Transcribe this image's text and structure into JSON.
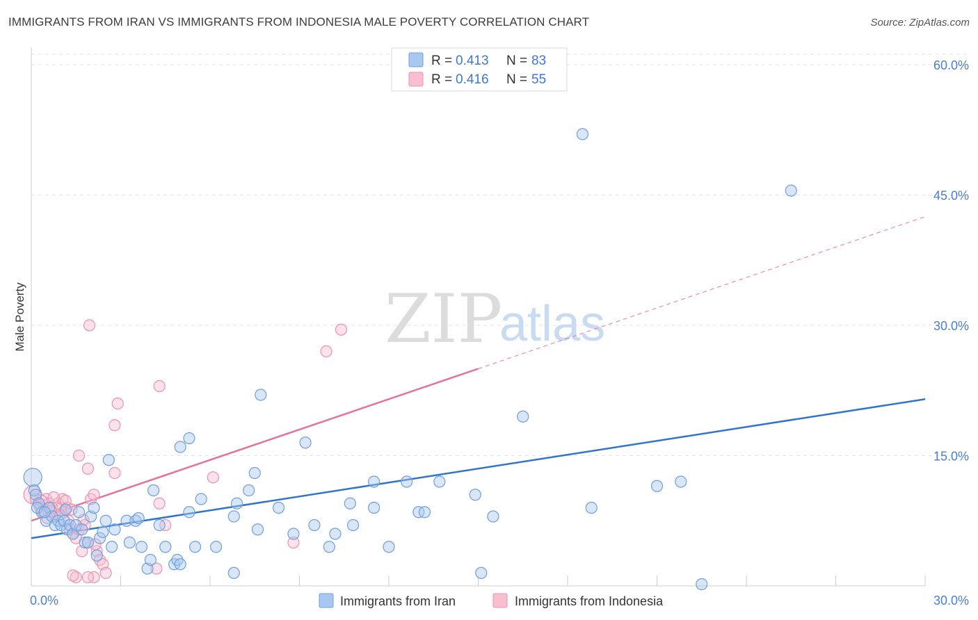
{
  "title": "IMMIGRANTS FROM IRAN VS IMMIGRANTS FROM INDONESIA MALE POVERTY CORRELATION CHART",
  "source": "Source: ZipAtlas.com",
  "watermark": {
    "zip": "ZIP",
    "atlas": "atlas"
  },
  "colors": {
    "iran_fill": "#a9c8f0",
    "iran_stroke": "#6f9fdc",
    "iran_line": "#2f74d0",
    "indonesia_fill": "#f7bfd0",
    "indonesia_stroke": "#ec93ad",
    "indonesia_line": "#e8719a",
    "grid": "#e3e3e3",
    "tick_label": "#4a7fd0"
  },
  "legend": {
    "rows": [
      {
        "r_label": "R = ",
        "r_value": "0.413",
        "n_label": "N = ",
        "n_value": "83"
      },
      {
        "r_label": "R = ",
        "r_value": "0.416",
        "n_label": "N = ",
        "n_value": "55"
      }
    ]
  },
  "chart_data": {
    "type": "scatter",
    "title": "IMMIGRANTS FROM IRAN VS IMMIGRANTS FROM INDONESIA MALE POVERTY CORRELATION CHART",
    "xlabel": "",
    "ylabel": "Male Poverty",
    "xlim": [
      0,
      30
    ],
    "ylim": [
      0,
      62
    ],
    "x_tick_labels": [
      "0.0%",
      "30.0%"
    ],
    "y_ticks": [
      15,
      30,
      45,
      60
    ],
    "y_tick_labels": [
      "15.0%",
      "30.0%",
      "45.0%",
      "60.0%"
    ],
    "grid": true,
    "legend_position": "top-center",
    "series": [
      {
        "name": "Immigrants from Iran",
        "r": 0.413,
        "n": 83,
        "trend": {
          "x0": 0,
          "y0": 5.5,
          "x1": 30,
          "y1": 21.5
        },
        "points": [
          [
            0.05,
            12.5
          ],
          [
            0.1,
            11.0
          ],
          [
            0.15,
            10.5
          ],
          [
            0.25,
            9.5
          ],
          [
            0.35,
            8.5
          ],
          [
            0.5,
            7.5
          ],
          [
            0.6,
            9.0
          ],
          [
            0.7,
            8.0
          ],
          [
            0.8,
            7.0
          ],
          [
            0.9,
            7.5
          ],
          [
            1.0,
            7.0
          ],
          [
            1.1,
            7.5
          ],
          [
            1.2,
            6.5
          ],
          [
            1.3,
            7.0
          ],
          [
            1.4,
            6.0
          ],
          [
            1.5,
            7.0
          ],
          [
            1.6,
            8.5
          ],
          [
            1.7,
            6.5
          ],
          [
            1.8,
            5.0
          ],
          [
            1.9,
            5.0
          ],
          [
            2.0,
            8.0
          ],
          [
            2.1,
            9.0
          ],
          [
            2.2,
            3.5
          ],
          [
            2.3,
            5.5
          ],
          [
            2.5,
            7.5
          ],
          [
            2.6,
            14.5
          ],
          [
            2.7,
            4.5
          ],
          [
            2.8,
            6.5
          ],
          [
            3.2,
            7.5
          ],
          [
            3.3,
            5.0
          ],
          [
            3.5,
            7.5
          ],
          [
            3.7,
            4.5
          ],
          [
            3.9,
            2.0
          ],
          [
            4.0,
            3.0
          ],
          [
            4.1,
            11.0
          ],
          [
            4.3,
            7.0
          ],
          [
            4.5,
            4.5
          ],
          [
            4.8,
            2.5
          ],
          [
            4.9,
            3.0
          ],
          [
            5.0,
            2.5
          ],
          [
            5.3,
            8.5
          ],
          [
            5.5,
            4.5
          ],
          [
            5.7,
            10.0
          ],
          [
            5.0,
            16.0
          ],
          [
            5.3,
            17.0
          ],
          [
            6.2,
            4.5
          ],
          [
            6.8,
            1.5
          ],
          [
            6.8,
            8.0
          ],
          [
            6.9,
            9.5
          ],
          [
            7.3,
            11.0
          ],
          [
            7.5,
            13.0
          ],
          [
            7.6,
            6.5
          ],
          [
            7.7,
            22.0
          ],
          [
            8.3,
            9.0
          ],
          [
            8.8,
            6.0
          ],
          [
            9.2,
            16.5
          ],
          [
            9.5,
            7.0
          ],
          [
            10.0,
            4.5
          ],
          [
            10.2,
            6.0
          ],
          [
            10.7,
            9.5
          ],
          [
            10.8,
            7.0
          ],
          [
            11.5,
            12.0
          ],
          [
            11.5,
            9.0
          ],
          [
            12.0,
            4.5
          ],
          [
            12.6,
            12.0
          ],
          [
            13.0,
            8.5
          ],
          [
            13.2,
            8.5
          ],
          [
            13.7,
            12.0
          ],
          [
            14.9,
            10.5
          ],
          [
            15.1,
            1.5
          ],
          [
            15.5,
            8.0
          ],
          [
            16.5,
            19.5
          ],
          [
            18.5,
            52.0
          ],
          [
            18.8,
            9.0
          ],
          [
            21.0,
            11.5
          ],
          [
            21.8,
            12.0
          ],
          [
            22.5,
            0.2
          ],
          [
            25.5,
            45.5
          ],
          [
            0.2,
            9.0
          ],
          [
            0.45,
            8.5
          ],
          [
            1.15,
            8.8
          ],
          [
            3.6,
            7.8
          ],
          [
            2.4,
            6.2
          ]
        ]
      },
      {
        "name": "Immigrants from Indonesia",
        "r": 0.416,
        "n": 55,
        "trend": {
          "x0": 0,
          "y0": 7.5,
          "x1": 30,
          "y1": 42.5,
          "solid_until_x": 15.0
        },
        "points": [
          [
            0.05,
            10.5
          ],
          [
            0.15,
            10.0
          ],
          [
            0.25,
            9.5
          ],
          [
            0.3,
            9.0
          ],
          [
            0.4,
            8.5
          ],
          [
            0.5,
            10.0
          ],
          [
            0.6,
            9.5
          ],
          [
            0.7,
            9.0
          ],
          [
            0.8,
            8.0
          ],
          [
            0.9,
            9.5
          ],
          [
            1.0,
            9.0
          ],
          [
            1.05,
            10.0
          ],
          [
            1.1,
            8.5
          ],
          [
            1.2,
            9.0
          ],
          [
            1.25,
            7.5
          ],
          [
            1.3,
            6.5
          ],
          [
            1.4,
            6.0
          ],
          [
            1.5,
            5.5
          ],
          [
            1.6,
            6.5
          ],
          [
            1.7,
            4.0
          ],
          [
            1.8,
            7.0
          ],
          [
            1.9,
            5.0
          ],
          [
            2.0,
            10.0
          ],
          [
            2.1,
            10.5
          ],
          [
            2.2,
            4.0
          ],
          [
            2.3,
            3.0
          ],
          [
            2.4,
            2.5
          ],
          [
            2.5,
            1.5
          ],
          [
            2.1,
            1.0
          ],
          [
            1.9,
            1.0
          ],
          [
            1.5,
            1.0
          ],
          [
            1.4,
            1.2
          ],
          [
            1.6,
            15.0
          ],
          [
            1.9,
            13.5
          ],
          [
            1.95,
            30.0
          ],
          [
            2.8,
            13.0
          ],
          [
            2.9,
            21.0
          ],
          [
            2.8,
            18.5
          ],
          [
            4.3,
            23.0
          ],
          [
            4.3,
            9.5
          ],
          [
            4.5,
            7.0
          ],
          [
            4.2,
            2.0
          ],
          [
            6.1,
            12.5
          ],
          [
            8.8,
            5.0
          ],
          [
            9.9,
            27.0
          ],
          [
            10.4,
            29.5
          ],
          [
            0.35,
            9.8
          ],
          [
            0.55,
            7.8
          ],
          [
            0.75,
            10.2
          ],
          [
            0.95,
            8.2
          ],
          [
            1.15,
            9.8
          ],
          [
            1.35,
            8.8
          ],
          [
            2.15,
            4.8
          ],
          [
            1.75,
            7.6
          ],
          [
            0.65,
            8.6
          ]
        ]
      }
    ]
  },
  "bottom_legend": {
    "items": [
      {
        "label": "Immigrants from Iran"
      },
      {
        "label": "Immigrants from Indonesia"
      }
    ]
  }
}
